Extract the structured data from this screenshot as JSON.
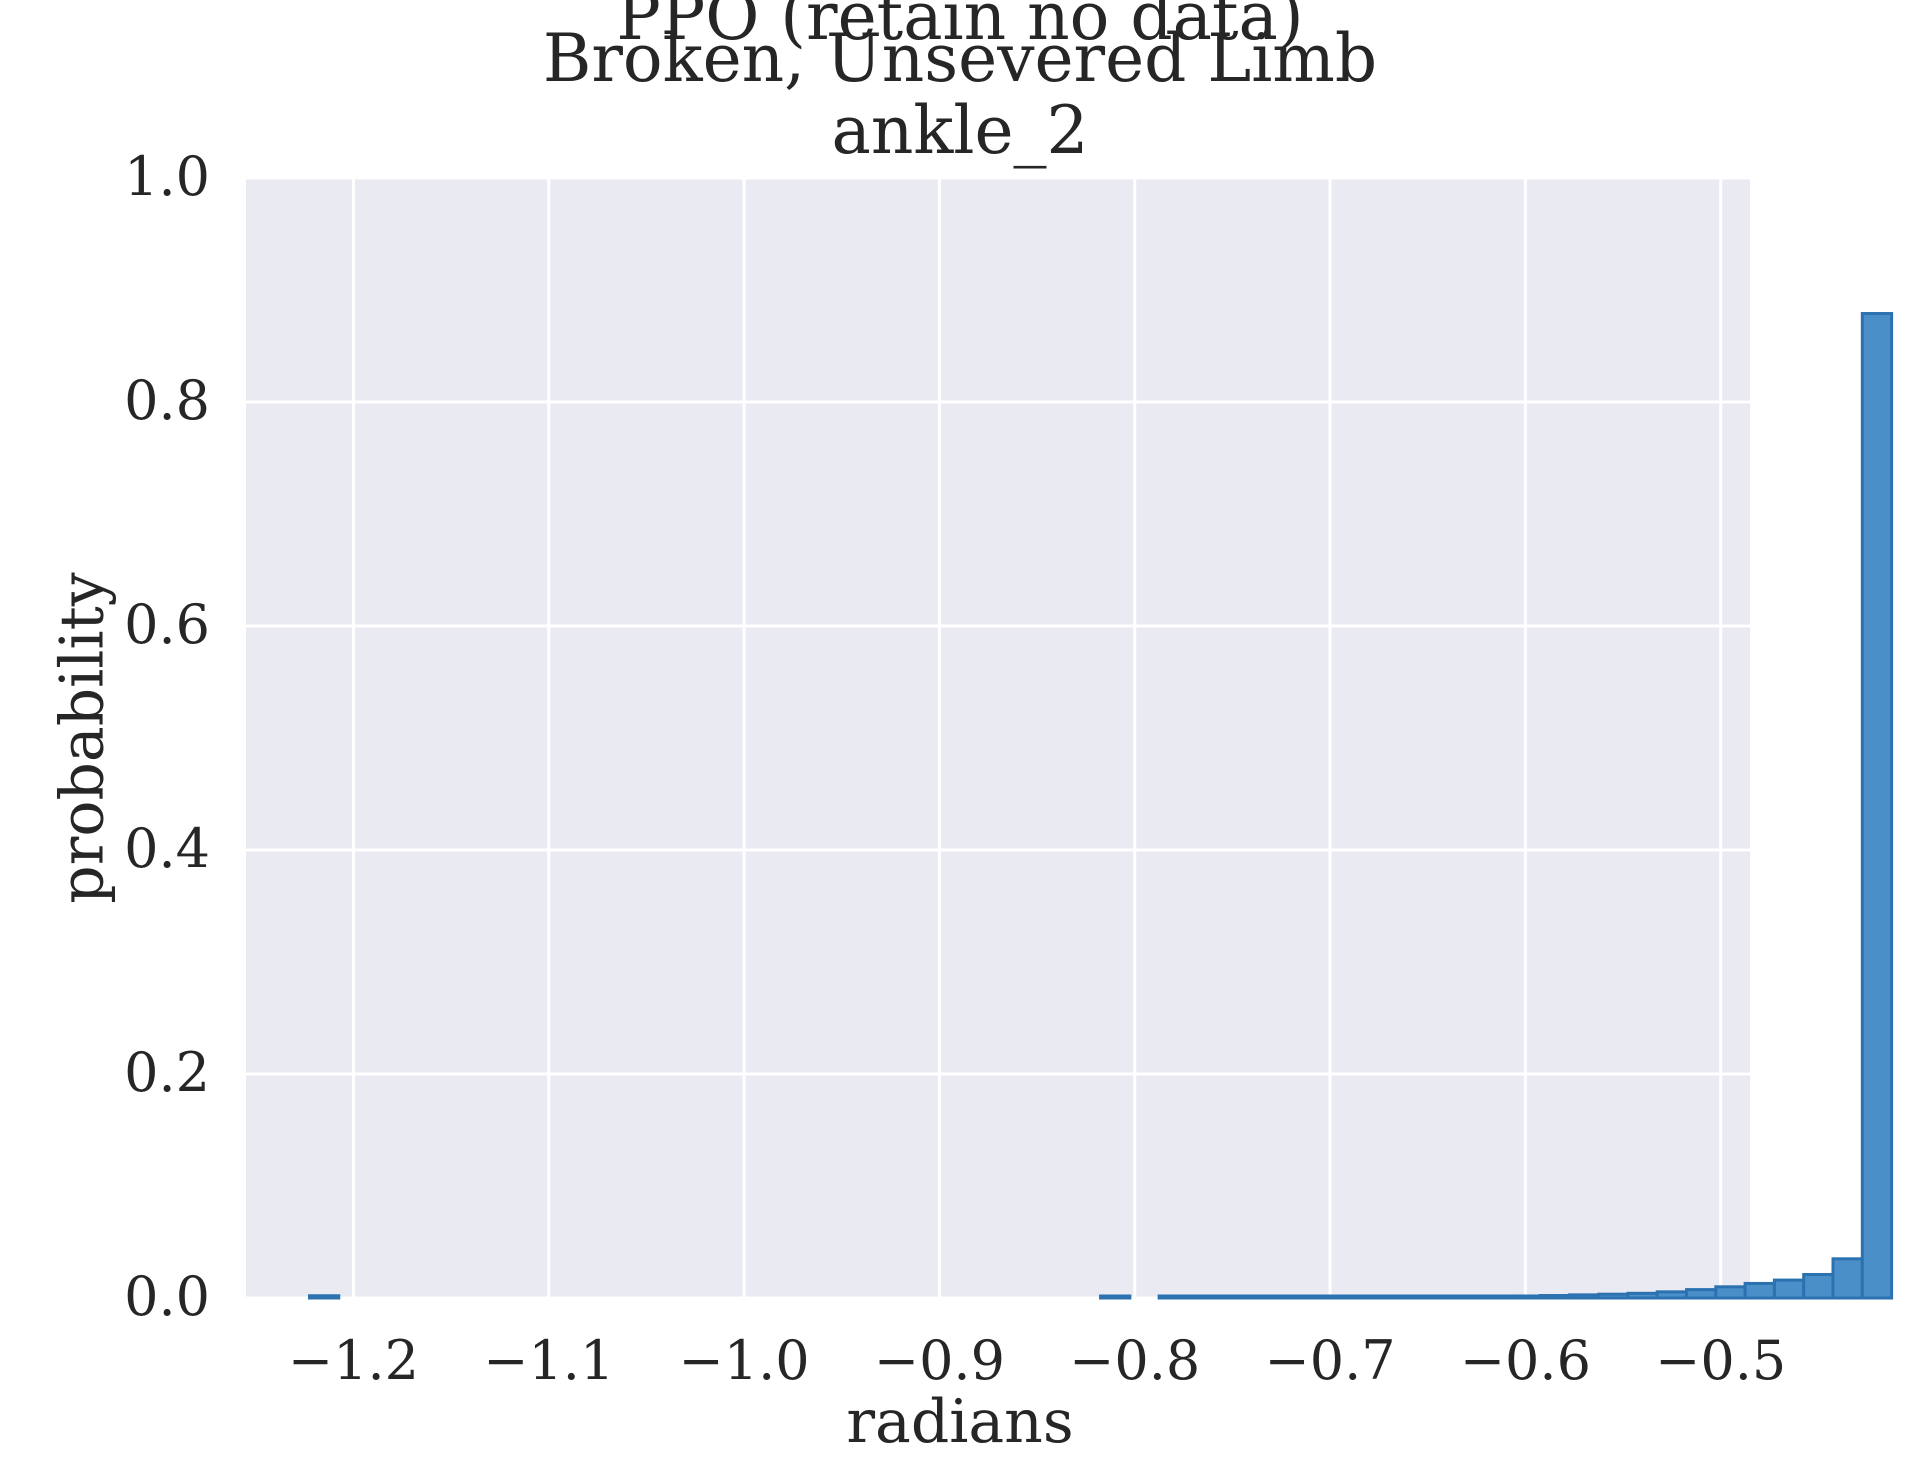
{
  "chart_data": {
    "type": "bar",
    "histtype": "step-filled",
    "title_lines": [
      "PPO (retain no data)",
      "Broken, Unsevered Limb",
      "ankle_2"
    ],
    "xlabel": "radians",
    "ylabel": "probability",
    "xlim": [
      -1.255,
      -0.485
    ],
    "ylim": [
      0.0,
      1.0
    ],
    "xticks": [
      -1.2,
      -1.1,
      -1.0,
      -0.9,
      -0.8,
      -0.7,
      -0.6,
      -0.5
    ],
    "xtick_labels": [
      "−1.2",
      "−1.1",
      "−1.0",
      "−0.9",
      "−0.8",
      "−0.7",
      "−0.6",
      "−0.5"
    ],
    "yticks": [
      0.0,
      0.2,
      0.4,
      0.6,
      0.8,
      1.0
    ],
    "ytick_labels": [
      "0.0",
      "0.2",
      "0.4",
      "0.6",
      "0.8",
      "1.0"
    ],
    "grid": true,
    "bin_width": 0.015,
    "bin_edges_start": -1.2225,
    "values": [
      0.002,
      0,
      0,
      0,
      0,
      0,
      0,
      0,
      0,
      0,
      0,
      0,
      0,
      0,
      0,
      0,
      0,
      0,
      0,
      0,
      0,
      0,
      0,
      0,
      0,
      0,
      0,
      0.0008,
      0,
      0.0006,
      0.0006,
      0.0006,
      0.0007,
      0.0007,
      0.0007,
      0.0008,
      0.0009,
      0.001,
      0.0012,
      0.0013,
      0.0015,
      0.0018,
      0.0022,
      0.0028,
      0.0034,
      0.0042,
      0.0055,
      0.0075,
      0.01,
      0.013,
      0.016,
      0.021,
      0.035,
      0.879
    ],
    "colors": {
      "face": "#4b8fc8",
      "edge": "#2c72b1",
      "plot_bg": "#eaeaf2",
      "grid": "#ffffff"
    }
  }
}
